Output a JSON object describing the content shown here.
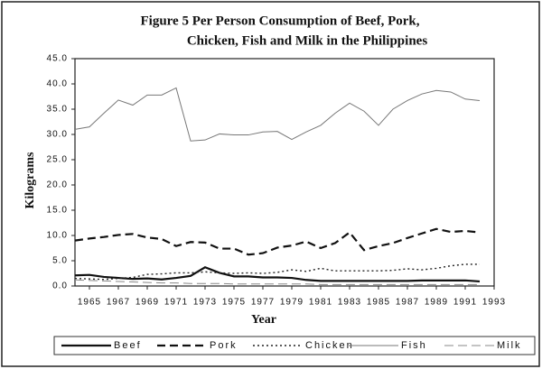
{
  "chart_data": {
    "type": "line",
    "title": [
      "Figure 5  Per Person Consumption of Beef, Pork,",
      "Chicken, Fish and Milk in the Philippines"
    ],
    "x_label": "Year",
    "y_label": "Kilograms",
    "x": [
      1964,
      1965,
      1966,
      1967,
      1968,
      1969,
      1970,
      1971,
      1972,
      1973,
      1974,
      1975,
      1976,
      1977,
      1978,
      1979,
      1980,
      1981,
      1982,
      1983,
      1984,
      1985,
      1986,
      1987,
      1988,
      1989,
      1990,
      1991,
      1992
    ],
    "xlim": [
      1964,
      1993
    ],
    "xticks": [
      1965,
      1967,
      1969,
      1971,
      1973,
      1975,
      1977,
      1979,
      1981,
      1983,
      1985,
      1987,
      1989,
      1991,
      1993
    ],
    "ylim": [
      0,
      45
    ],
    "yticks": [
      {
        "value": 0,
        "label": "0.0"
      },
      {
        "value": 5,
        "label": "5.0"
      },
      {
        "value": 10,
        "label": "10.0"
      },
      {
        "value": 15,
        "label": "15.0"
      },
      {
        "value": 20,
        "label": "20.0"
      },
      {
        "value": 25,
        "label": "25.0"
      },
      {
        "value": 30,
        "label": "30.0"
      },
      {
        "value": 35,
        "label": "35.0"
      },
      {
        "value": 40,
        "label": "40.0"
      },
      {
        "value": 45,
        "label": "45.0"
      }
    ],
    "grid": false,
    "legend": "bottom",
    "series": [
      {
        "name": "Beef",
        "color": "#111111",
        "style": "thick-solid",
        "values": [
          2.1,
          2.2,
          1.8,
          1.6,
          1.4,
          1.5,
          1.3,
          1.6,
          2.0,
          3.7,
          2.6,
          1.9,
          1.9,
          1.7,
          1.7,
          1.6,
          1.2,
          1.0,
          1.0,
          1.0,
          1.0,
          1.0,
          1.0,
          1.0,
          1.1,
          1.1,
          1.1,
          1.1,
          0.9
        ]
      },
      {
        "name": "Pork",
        "color": "#111111",
        "style": "thick-dashed",
        "values": [
          9.0,
          9.4,
          9.7,
          10.1,
          10.3,
          9.6,
          9.3,
          7.9,
          8.7,
          8.6,
          7.4,
          7.4,
          6.2,
          6.5,
          7.6,
          8.0,
          8.8,
          7.5,
          8.5,
          10.6,
          7.1,
          7.9,
          8.5,
          9.5,
          10.4,
          11.3,
          10.7,
          10.9,
          10.6
        ]
      },
      {
        "name": "Chicken",
        "color": "#222222",
        "style": "dotted",
        "values": [
          1.5,
          1.4,
          1.3,
          1.5,
          1.7,
          2.3,
          2.4,
          2.6,
          2.6,
          2.8,
          2.6,
          2.5,
          2.6,
          2.5,
          2.7,
          3.2,
          2.9,
          3.5,
          3.0,
          3.0,
          3.0,
          3.0,
          3.1,
          3.4,
          3.2,
          3.5,
          4.0,
          4.3,
          4.3
        ]
      },
      {
        "name": "Fish",
        "color": "#777777",
        "style": "thin-solid",
        "values": [
          31.0,
          31.5,
          34.2,
          36.8,
          35.8,
          37.8,
          37.8,
          39.2,
          28.7,
          28.9,
          30.1,
          29.9,
          29.9,
          30.5,
          30.6,
          29.0,
          30.5,
          31.8,
          34.2,
          36.2,
          34.6,
          31.8,
          35.0,
          36.7,
          38.0,
          38.7,
          38.4,
          37.0,
          36.7
        ]
      },
      {
        "name": "Milk",
        "color": "#888888",
        "style": "thin-dashed",
        "values": [
          1.2,
          1.1,
          1.0,
          0.9,
          0.8,
          0.7,
          0.6,
          0.6,
          0.5,
          0.5,
          0.5,
          0.4,
          0.4,
          0.4,
          0.4,
          0.4,
          0.4,
          0.3,
          0.3,
          0.3,
          0.3,
          0.3,
          0.3,
          0.3,
          0.3,
          0.3,
          0.3,
          0.3,
          0.3
        ]
      }
    ]
  }
}
